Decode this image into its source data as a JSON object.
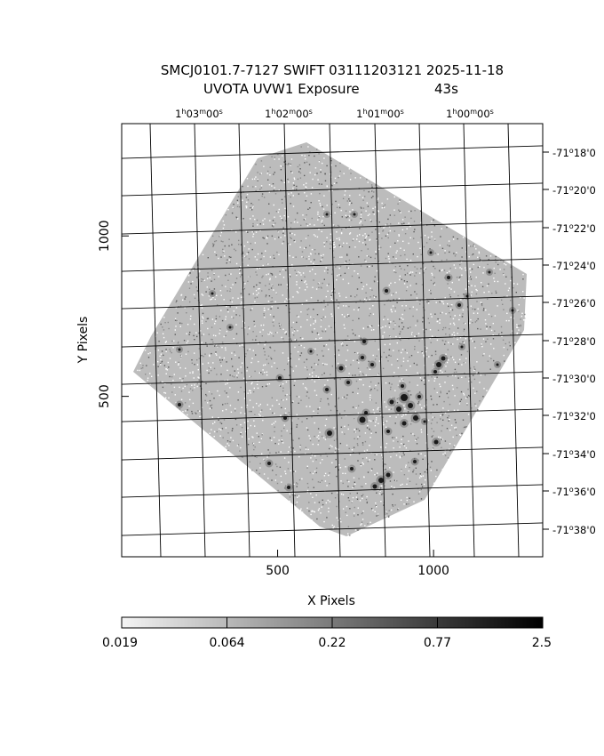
{
  "title": {
    "line1": "SMCJ0101.7-7127 SWIFT 03111203121 2025-11-18",
    "line2_left": "UVOTA UVW1 Exposure",
    "line2_right": "43s"
  },
  "axes": {
    "x_label": "X Pixels",
    "y_label": "Y Pixels",
    "x_ticks": [
      {
        "value": 500,
        "label": "500"
      },
      {
        "value": 1000,
        "label": "1000"
      }
    ],
    "y_ticks": [
      {
        "value": 500,
        "label": "500"
      },
      {
        "value": 1000,
        "label": "1000"
      }
    ],
    "x_range": [
      0,
      1350
    ],
    "y_range": [
      0,
      1350
    ]
  },
  "ra_labels": [
    {
      "h": "1",
      "m": "03",
      "s": "00"
    },
    {
      "h": "1",
      "m": "02",
      "s": "00"
    },
    {
      "h": "1",
      "m": "01",
      "s": "00"
    },
    {
      "h": "1",
      "m": "00",
      "s": "00"
    }
  ],
  "dec_labels": [
    {
      "d": "-71",
      "m": "18",
      "s": "0"
    },
    {
      "d": "-71",
      "m": "20",
      "s": "0"
    },
    {
      "d": "-71",
      "m": "22",
      "s": "0"
    },
    {
      "d": "-71",
      "m": "24",
      "s": "0"
    },
    {
      "d": "-71",
      "m": "26",
      "s": "0"
    },
    {
      "d": "-71",
      "m": "28",
      "s": "0"
    },
    {
      "d": "-71",
      "m": "30",
      "s": "0"
    },
    {
      "d": "-71",
      "m": "32",
      "s": "0"
    },
    {
      "d": "-71",
      "m": "34",
      "s": "0"
    },
    {
      "d": "-71",
      "m": "36",
      "s": "0"
    },
    {
      "d": "-71",
      "m": "38",
      "s": "0"
    }
  ],
  "colorbar": {
    "labels": [
      "0.019",
      "0.064",
      "0.22",
      "0.77",
      "2.5"
    ],
    "scale": "log"
  }
}
